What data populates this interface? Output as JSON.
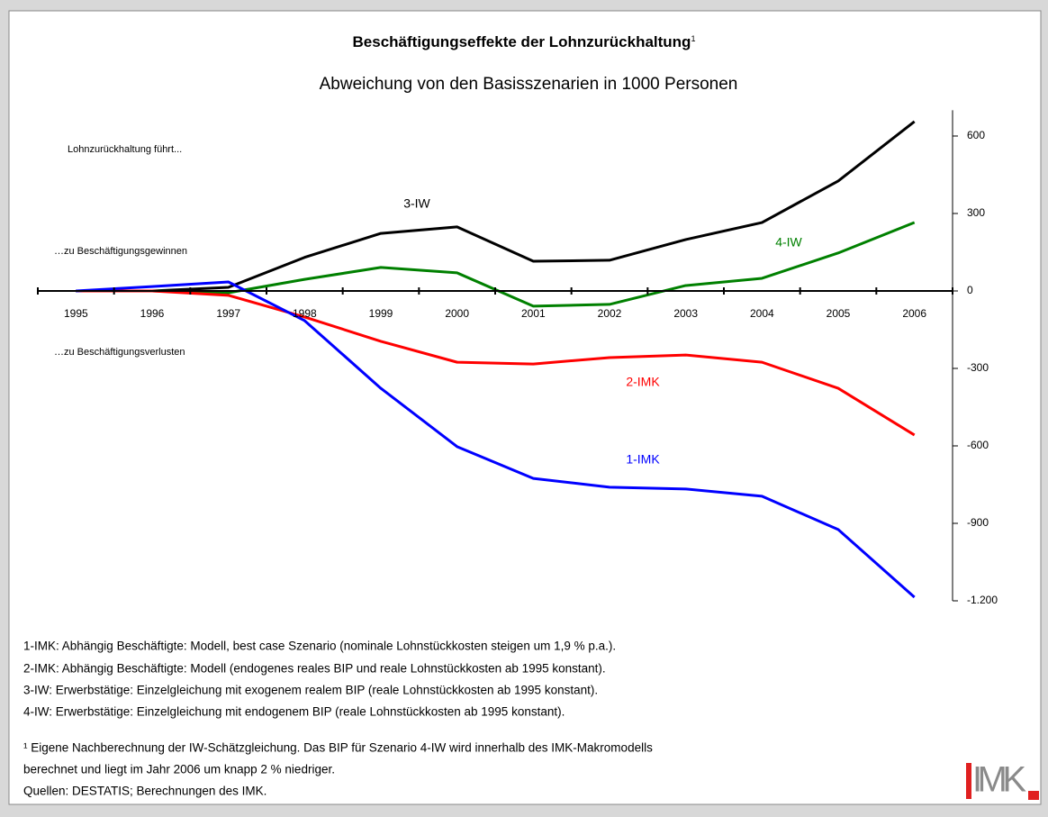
{
  "chart_data": {
    "type": "line",
    "title": "Beschäftigungseffekte der Lohnzurückhaltung",
    "title_note": "1",
    "subtitle": "Abweichung von den Basisszenarien in 1000 Personen",
    "annotations": [
      "Lohnzurückhaltung führt...",
      "…zu Beschäftigungsgewinnen",
      "…zu Beschäftigungsverlusten"
    ],
    "categories": [
      "1995",
      "1996",
      "1997",
      "1998",
      "1999",
      "2000",
      "2001",
      "2002",
      "2003",
      "2004",
      "2005",
      "2006"
    ],
    "series": [
      {
        "name": "3-IW",
        "color": "#000000",
        "values": [
          0,
          0,
          14,
          130,
          223,
          248,
          115,
          119,
          199,
          265,
          426,
          656
        ]
      },
      {
        "name": "4-IW",
        "color": "#008000",
        "values": [
          0,
          0,
          -7,
          45,
          91,
          70,
          -59,
          -52,
          21,
          49,
          147,
          265
        ]
      },
      {
        "name": "2-IMK",
        "color": "#ff0000",
        "values": [
          0,
          0,
          -17,
          -101,
          -195,
          -276,
          -283,
          -258,
          -248,
          -276,
          -377,
          -558
        ]
      },
      {
        "name": "1-IMK",
        "color": "#0000ff",
        "values": [
          0,
          17,
          35,
          -115,
          -377,
          -603,
          -726,
          -760,
          -767,
          -795,
          -924,
          -1186
        ]
      }
    ],
    "ylim": [
      -1200,
      700
    ],
    "yticks": [
      600,
      300,
      0,
      -300,
      -600,
      -900,
      {
        "value": -1200,
        "label": "-1.200"
      }
    ]
  },
  "notes": [
    "1-IMK: Abhängig Beschäftigte: Modell, best case Szenario (nominale Lohnstückkosten steigen um 1,9 % p.a.).",
    "2-IMK: Abhängig Beschäftigte: Modell (endogenes reales BIP und reale Lohnstückkosten ab 1995 konstant).",
    "3-IW: Erwerbstätige: Einzelgleichung mit exogenem realem BIP (reale Lohnstückkosten ab 1995 konstant).",
    "4-IW: Erwerbstätige: Einzelgleichung mit endogenem BIP (reale Lohnstückkosten ab 1995 konstant)."
  ],
  "footnote": [
    "¹ Eigene Nachberechnung der IW-Schätzgleichung. Das BIP für Szenario 4-IW wird innerhalb des IMK-Makromodells",
    "berechnet und liegt im Jahr 2006 um knapp 2 % niedriger.",
    "Quellen: DESTATIS; Berechnungen des IMK."
  ],
  "logo": "IMK"
}
